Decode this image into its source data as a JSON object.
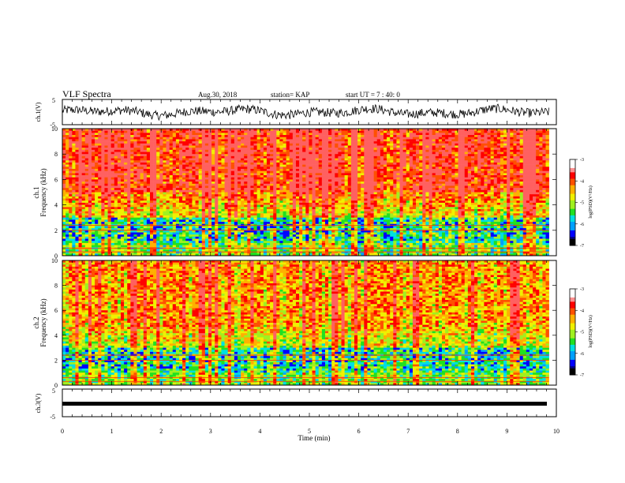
{
  "header": {
    "title": "VLF Spectra",
    "date": "Aug.30, 2018",
    "station": "station= KAP",
    "start": "start  UT =   7 : 40: 0"
  },
  "chart_data": [
    {
      "type": "line",
      "panel": "ch1-waveform",
      "ylabel": "ch.1(V)",
      "ylim": [
        -5,
        5
      ],
      "yticks": [
        "5",
        "-5"
      ],
      "xlim": [
        0,
        10
      ],
      "description_values": "noisy waveform, band roughly -2 to 3 V"
    },
    {
      "type": "heatmap",
      "panel": "ch1-spectrogram",
      "ylabel": "ch.1 Frequency  (kHz)",
      "ylim": [
        0,
        10
      ],
      "yticks": [
        "0",
        "2",
        "4",
        "6",
        "8",
        "10"
      ],
      "xlim": [
        0,
        9.85
      ],
      "colorbar": {
        "label": "log(PSD)(V²/Hz)",
        "min": -7,
        "max": -3,
        "ticks": [
          "-3",
          "-4",
          "-5",
          "-6",
          "-7"
        ]
      }
    },
    {
      "type": "heatmap",
      "panel": "ch2-spectrogram",
      "ylabel": "ch.2 Frequency  (kHz)",
      "ylim": [
        0,
        10
      ],
      "yticks": [
        "0",
        "2",
        "4",
        "6",
        "8",
        "10"
      ],
      "xlim": [
        0,
        9.85
      ],
      "colorbar": {
        "label": "log(PSD)(V²/Hz)",
        "min": -7,
        "max": -3,
        "ticks": [
          "-3",
          "-4",
          "-5",
          "-6",
          "-7"
        ]
      }
    },
    {
      "type": "line",
      "panel": "ch3-waveform",
      "ylabel": "ch.3(V)",
      "ylim": [
        -5,
        5
      ],
      "yticks": [
        "5",
        "-5"
      ],
      "xlim": [
        0,
        10
      ],
      "values_note": "flat thick line at about 0 V"
    }
  ],
  "xaxis": {
    "label": "Time  (min)",
    "ticks": [
      "0",
      "1",
      "2",
      "3",
      "4",
      "5",
      "6",
      "7",
      "8",
      "9",
      "10"
    ],
    "range": [
      0,
      10
    ]
  },
  "colors": {
    "frame": "#000000",
    "waveform": "#000000"
  },
  "palette": [
    "#000000",
    "#0000ff",
    "#00a0ff",
    "#00e0e0",
    "#20f020",
    "#b0ff30",
    "#ffff00",
    "#ffb000",
    "#ff4000",
    "#ff0000",
    "#ff8080",
    "#ffffff"
  ]
}
